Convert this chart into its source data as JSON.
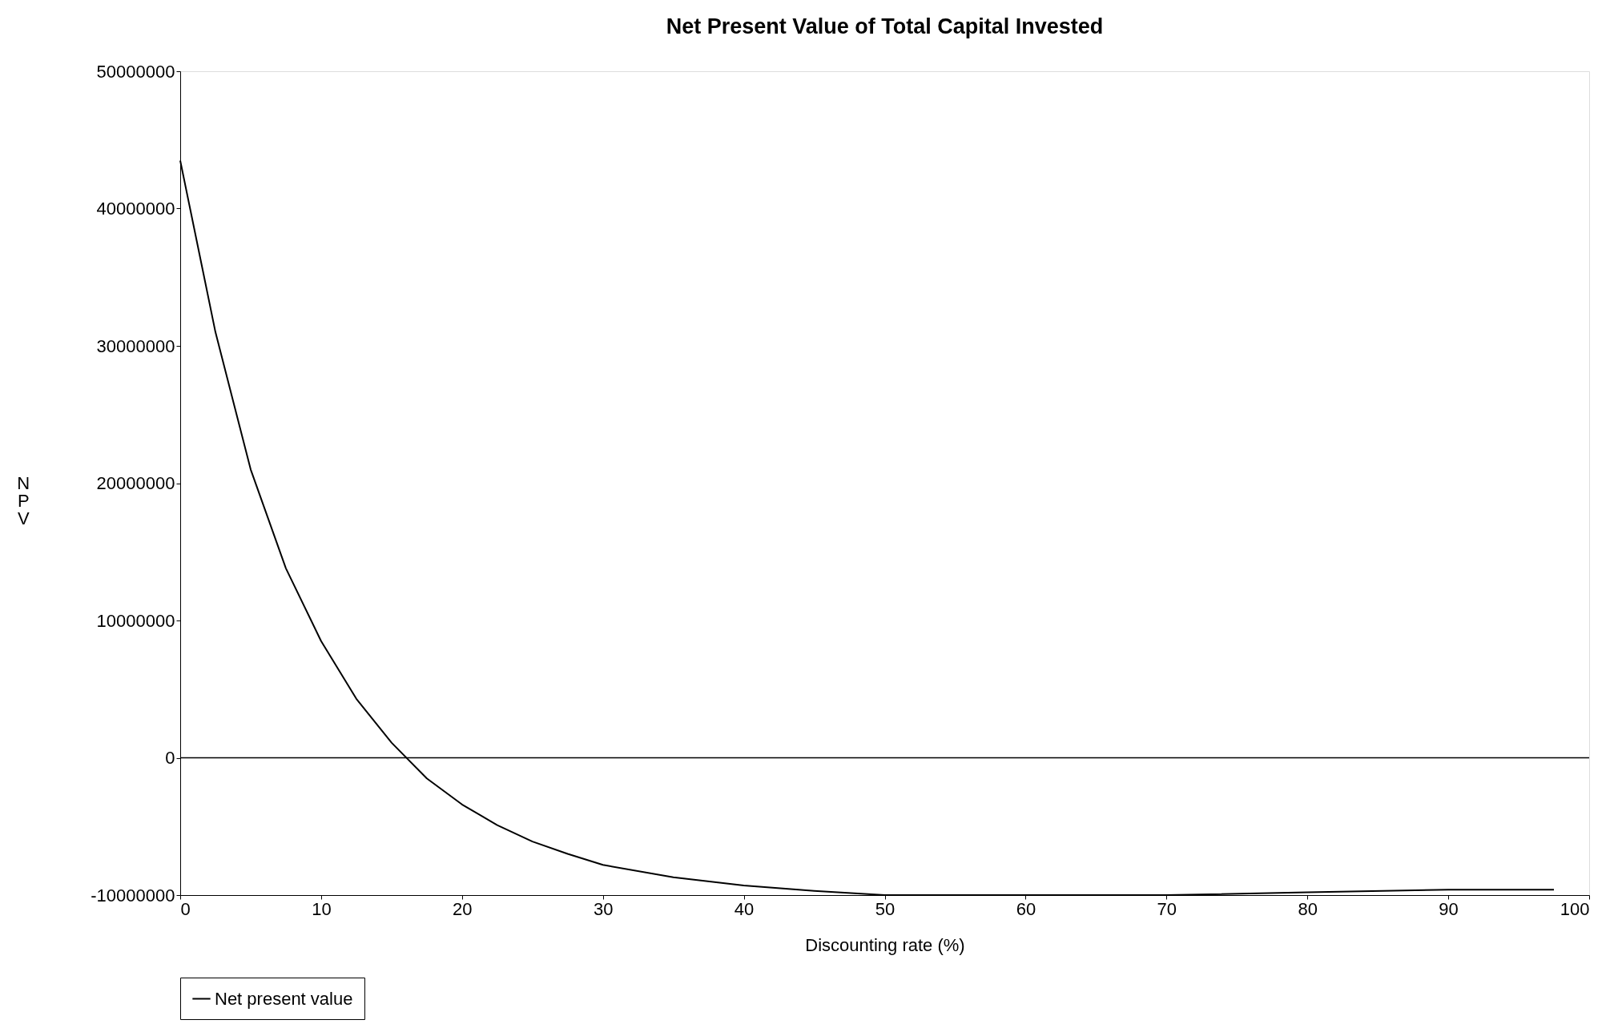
{
  "chart_data": {
    "type": "line",
    "title": "Net Present Value of Total Capital Invested",
    "xlabel": "Discounting rate (%)",
    "ylabel": "NPV",
    "x": [
      0,
      2.5,
      5,
      7.5,
      10,
      12.5,
      15,
      17.5,
      20,
      22.5,
      25,
      27.5,
      30,
      35,
      40,
      45,
      50,
      57.5,
      70,
      80,
      90,
      97.5
    ],
    "series": [
      {
        "name": "Net present value",
        "color": "#000000",
        "values": [
          43500000,
          31000000,
          21000000,
          13800000,
          8500000,
          4300000,
          1100000,
          -1500000,
          -3400000,
          -4900000,
          -6100000,
          -7000000,
          -7800000,
          -8700000,
          -9300000,
          -9700000,
          -10000000,
          -10000000,
          -10000000,
          -9800000,
          -9600000,
          -9600000
        ]
      }
    ],
    "xlim": [
      0,
      100
    ],
    "xticks": [
      0,
      10,
      20,
      30,
      40,
      50,
      60,
      70,
      80,
      90,
      100
    ],
    "ylim": [
      -10000000,
      50000000
    ],
    "yticks": [
      -10000000,
      0,
      10000000,
      20000000,
      30000000,
      40000000,
      50000000
    ],
    "ref_lines": [
      {
        "axis": "y",
        "value": 0,
        "label": null
      }
    ],
    "grid": false,
    "legend": "bottom",
    "marker": "none",
    "line_style": "solid"
  }
}
